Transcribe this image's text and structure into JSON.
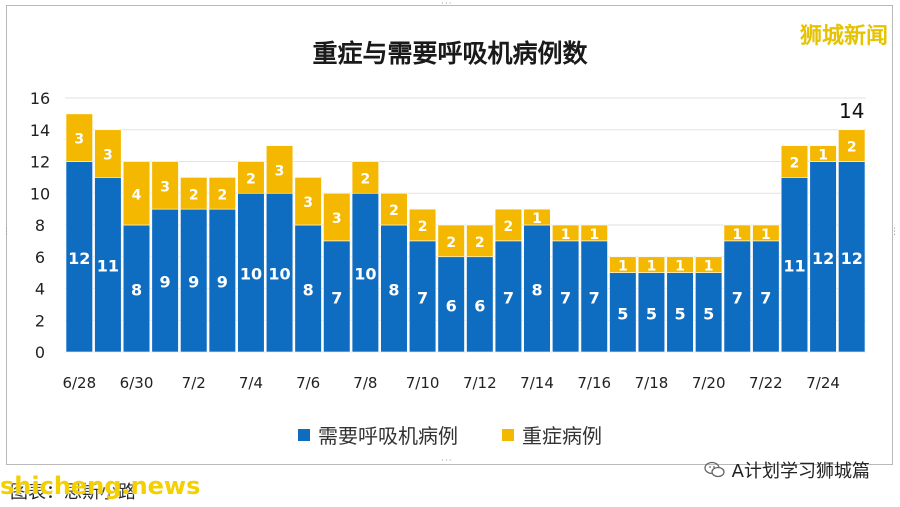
{
  "brand": "狮城新闻",
  "colors": {
    "needs_oxygen": "#0e6cc1",
    "severe": "#f5b800",
    "grid": "#e2e2e2",
    "label_on_bar": "#ffffff"
  },
  "caption": "图表：思斯小路",
  "watermark_left": "shicheng.news",
  "watermark_right": "A计划学习狮城篇",
  "icons": {
    "watermark": "wechat-icon"
  },
  "chart_data": {
    "type": "bar",
    "stacked": true,
    "title": "重症与需要呼吸机病例数",
    "categories": [
      "6/28",
      "6/29",
      "6/30",
      "7/1",
      "7/2",
      "7/3",
      "7/4",
      "7/5",
      "7/6",
      "7/7",
      "7/8",
      "7/9",
      "7/10",
      "7/11",
      "7/12",
      "7/13",
      "7/14",
      "7/15",
      "7/16",
      "7/17",
      "7/18",
      "7/19",
      "7/20",
      "7/21",
      "7/22",
      "7/23",
      "7/24",
      "7/25"
    ],
    "x_tick_labels": [
      "6/28",
      "6/30",
      "7/2",
      "7/4",
      "7/6",
      "7/8",
      "7/10",
      "7/12",
      "7/14",
      "7/16",
      "7/18",
      "7/20",
      "7/22",
      "7/24"
    ],
    "series": [
      {
        "name": "需要呼吸机病例",
        "values": [
          12,
          11,
          8,
          9,
          9,
          9,
          10,
          10,
          8,
          7,
          10,
          8,
          7,
          6,
          6,
          7,
          8,
          7,
          7,
          5,
          5,
          5,
          5,
          7,
          7,
          11,
          12,
          12
        ]
      },
      {
        "name": "重症病例",
        "values": [
          3,
          3,
          4,
          3,
          2,
          2,
          2,
          3,
          3,
          3,
          2,
          2,
          2,
          2,
          2,
          2,
          1,
          1,
          1,
          1,
          1,
          1,
          1,
          1,
          1,
          2,
          1,
          2
        ]
      }
    ],
    "ylim": [
      0,
      16
    ],
    "yticks": [
      0,
      2,
      4,
      6,
      8,
      10,
      12,
      14,
      16
    ],
    "grid": true,
    "legend_position": "bottom",
    "annotations": [
      {
        "category": "7/25",
        "text": "14"
      }
    ]
  }
}
